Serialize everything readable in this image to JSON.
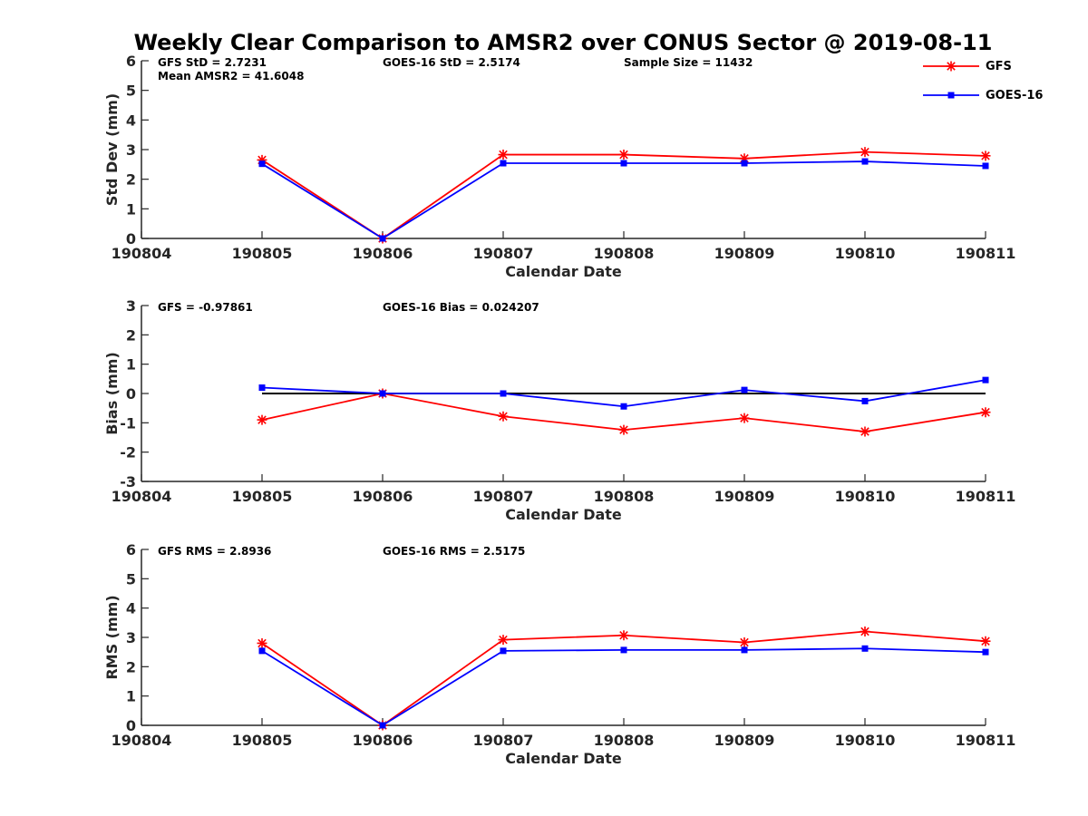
{
  "figure": {
    "title": "Weekly Clear Comparison to AMSR2 over CONUS Sector @ 2019-08-11",
    "legend": {
      "placement": "top-right",
      "entries": [
        {
          "label": "GFS",
          "color": "#ff0000",
          "marker": "asterisk"
        },
        {
          "label": "GOES-16",
          "color": "#0000ff",
          "marker": "square"
        }
      ]
    }
  },
  "chart_data": [
    {
      "type": "line",
      "xlabel": "Calendar Date",
      "ylabel": "Std Dev (mm)",
      "categories": [
        "190804",
        "190805",
        "190806",
        "190807",
        "190808",
        "190809",
        "190810",
        "190811"
      ],
      "ylim": [
        0,
        6
      ],
      "yticks": [
        "0",
        "1",
        "2",
        "3",
        "4",
        "5",
        "6"
      ],
      "grid": false,
      "zero_line": false,
      "annotations": [
        {
          "slot": "left",
          "text": "GFS StD = 2.7231"
        },
        {
          "slot": "left2",
          "text": "Mean AMSR2 = 41.6048"
        },
        {
          "slot": "mid",
          "text": "GOES-16 StD = 2.5174"
        },
        {
          "slot": "right",
          "text": "Sample Size = 11432"
        }
      ],
      "series": [
        {
          "name": "GFS",
          "color": "#ff0000",
          "marker": "asterisk",
          "x": [
            "190805",
            "190806",
            "190807",
            "190808",
            "190809",
            "190810",
            "190811"
          ],
          "values": [
            2.65,
            0.0,
            2.83,
            2.83,
            2.7,
            2.92,
            2.79
          ]
        },
        {
          "name": "GOES-16",
          "color": "#0000ff",
          "marker": "square",
          "x": [
            "190805",
            "190806",
            "190807",
            "190808",
            "190809",
            "190810",
            "190811"
          ],
          "values": [
            2.52,
            0.0,
            2.54,
            2.54,
            2.54,
            2.6,
            2.45
          ]
        }
      ]
    },
    {
      "type": "line",
      "xlabel": "Calendar Date",
      "ylabel": "Bias (mm)",
      "categories": [
        "190804",
        "190805",
        "190806",
        "190807",
        "190808",
        "190809",
        "190810",
        "190811"
      ],
      "ylim": [
        -3,
        3
      ],
      "yticks": [
        "-3",
        "-2",
        "-1",
        "0",
        "1",
        "2",
        "3"
      ],
      "grid": false,
      "zero_line": true,
      "annotations": [
        {
          "slot": "left",
          "text": "GFS = -0.97861"
        },
        {
          "slot": "mid",
          "text": "GOES-16 Bias  = 0.024207"
        }
      ],
      "series": [
        {
          "name": "GFS",
          "color": "#ff0000",
          "marker": "asterisk",
          "x": [
            "190805",
            "190806",
            "190807",
            "190808",
            "190809",
            "190810",
            "190811"
          ],
          "values": [
            -0.9,
            0.0,
            -0.78,
            -1.24,
            -0.84,
            -1.3,
            -0.64
          ]
        },
        {
          "name": "GOES-16",
          "color": "#0000ff",
          "marker": "square",
          "x": [
            "190805",
            "190806",
            "190807",
            "190808",
            "190809",
            "190810",
            "190811"
          ],
          "values": [
            0.2,
            0.0,
            0.0,
            -0.44,
            0.12,
            -0.26,
            0.46
          ]
        }
      ]
    },
    {
      "type": "line",
      "xlabel": "Calendar Date",
      "ylabel": "RMS (mm)",
      "categories": [
        "190804",
        "190805",
        "190806",
        "190807",
        "190808",
        "190809",
        "190810",
        "190811"
      ],
      "ylim": [
        0,
        6
      ],
      "yticks": [
        "0",
        "1",
        "2",
        "3",
        "4",
        "5",
        "6"
      ],
      "grid": false,
      "zero_line": false,
      "annotations": [
        {
          "slot": "left",
          "text": "GFS RMS = 2.8936"
        },
        {
          "slot": "mid",
          "text": "GOES-16 RMS = 2.5175"
        }
      ],
      "series": [
        {
          "name": "GFS",
          "color": "#ff0000",
          "marker": "asterisk",
          "x": [
            "190805",
            "190806",
            "190807",
            "190808",
            "190809",
            "190810",
            "190811"
          ],
          "values": [
            2.8,
            0.0,
            2.92,
            3.07,
            2.83,
            3.2,
            2.87
          ]
        },
        {
          "name": "GOES-16",
          "color": "#0000ff",
          "marker": "square",
          "x": [
            "190805",
            "190806",
            "190807",
            "190808",
            "190809",
            "190810",
            "190811"
          ],
          "values": [
            2.54,
            0.0,
            2.54,
            2.57,
            2.57,
            2.62,
            2.5
          ]
        }
      ]
    }
  ]
}
